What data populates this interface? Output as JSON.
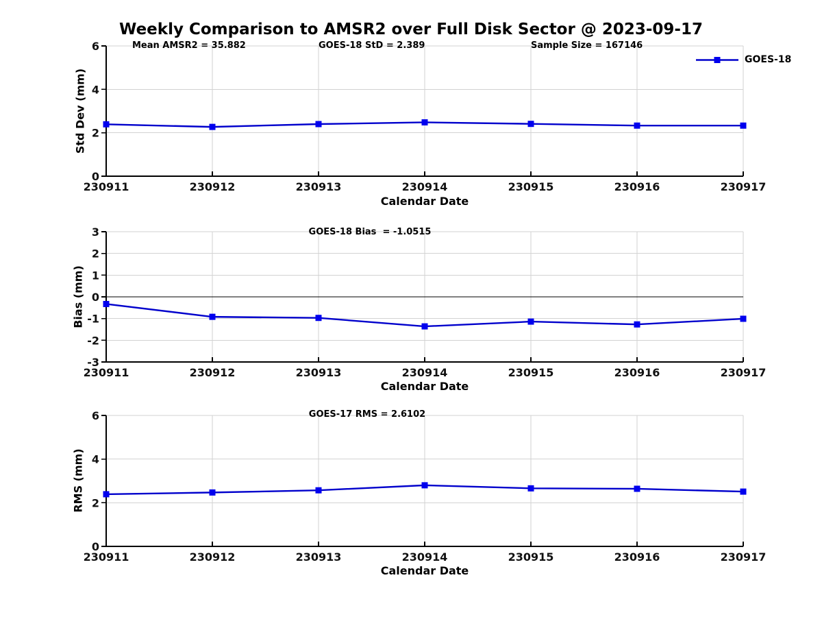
{
  "figure": {
    "title": "Weekly Comparison to AMSR2 over Full Disk Sector @ 2023-09-17"
  },
  "legend": {
    "label": "GOES-18"
  },
  "colors": {
    "line": "#0000cc",
    "marker": "#0000ee",
    "grid": "#d2d2d2",
    "axis": "#000000",
    "zero_line": "#000000"
  },
  "chart_data": [
    {
      "type": "line",
      "panel": "std-dev",
      "annotations": [
        {
          "text": "Mean AMSR2 = 35.882"
        },
        {
          "text": "GOES-18 StD = 2.389"
        },
        {
          "text": "Sample Size = 167146"
        }
      ],
      "categories": [
        "230911",
        "230912",
        "230913",
        "230914",
        "230915",
        "230916",
        "230917"
      ],
      "series": [
        {
          "name": "GOES-18",
          "values": [
            2.39,
            2.27,
            2.4,
            2.48,
            2.41,
            2.33,
            2.33
          ]
        }
      ],
      "xlabel": "Calendar Date",
      "ylabel": "Std Dev (mm)",
      "ylim": [
        0,
        6
      ],
      "yticks": [
        0,
        2,
        4,
        6
      ],
      "grid": true,
      "zero_line": false,
      "legend_position": "top-right-outside"
    },
    {
      "type": "line",
      "panel": "bias",
      "annotations": [
        {
          "text": "GOES-18 Bias  = -1.0515"
        }
      ],
      "categories": [
        "230911",
        "230912",
        "230913",
        "230914",
        "230915",
        "230916",
        "230917"
      ],
      "series": [
        {
          "name": "GOES-18",
          "values": [
            -0.33,
            -0.92,
            -0.97,
            -1.36,
            -1.14,
            -1.27,
            -1.01
          ]
        }
      ],
      "xlabel": "Calendar Date",
      "ylabel": "Bias (mm)",
      "ylim": [
        -3,
        3
      ],
      "yticks": [
        -3,
        -2,
        -1,
        0,
        1,
        2,
        3
      ],
      "grid": true,
      "zero_line": true
    },
    {
      "type": "line",
      "panel": "rms",
      "annotations": [
        {
          "text": "GOES-17 RMS = 2.6102"
        }
      ],
      "categories": [
        "230911",
        "230912",
        "230913",
        "230914",
        "230915",
        "230916",
        "230917"
      ],
      "series": [
        {
          "name": "GOES-18",
          "values": [
            2.39,
            2.47,
            2.57,
            2.8,
            2.66,
            2.64,
            2.51
          ]
        }
      ],
      "xlabel": "Calendar Date",
      "ylabel": "RMS (mm)",
      "ylim": [
        0,
        6
      ],
      "yticks": [
        0,
        2,
        4,
        6
      ],
      "grid": true,
      "zero_line": false
    }
  ]
}
